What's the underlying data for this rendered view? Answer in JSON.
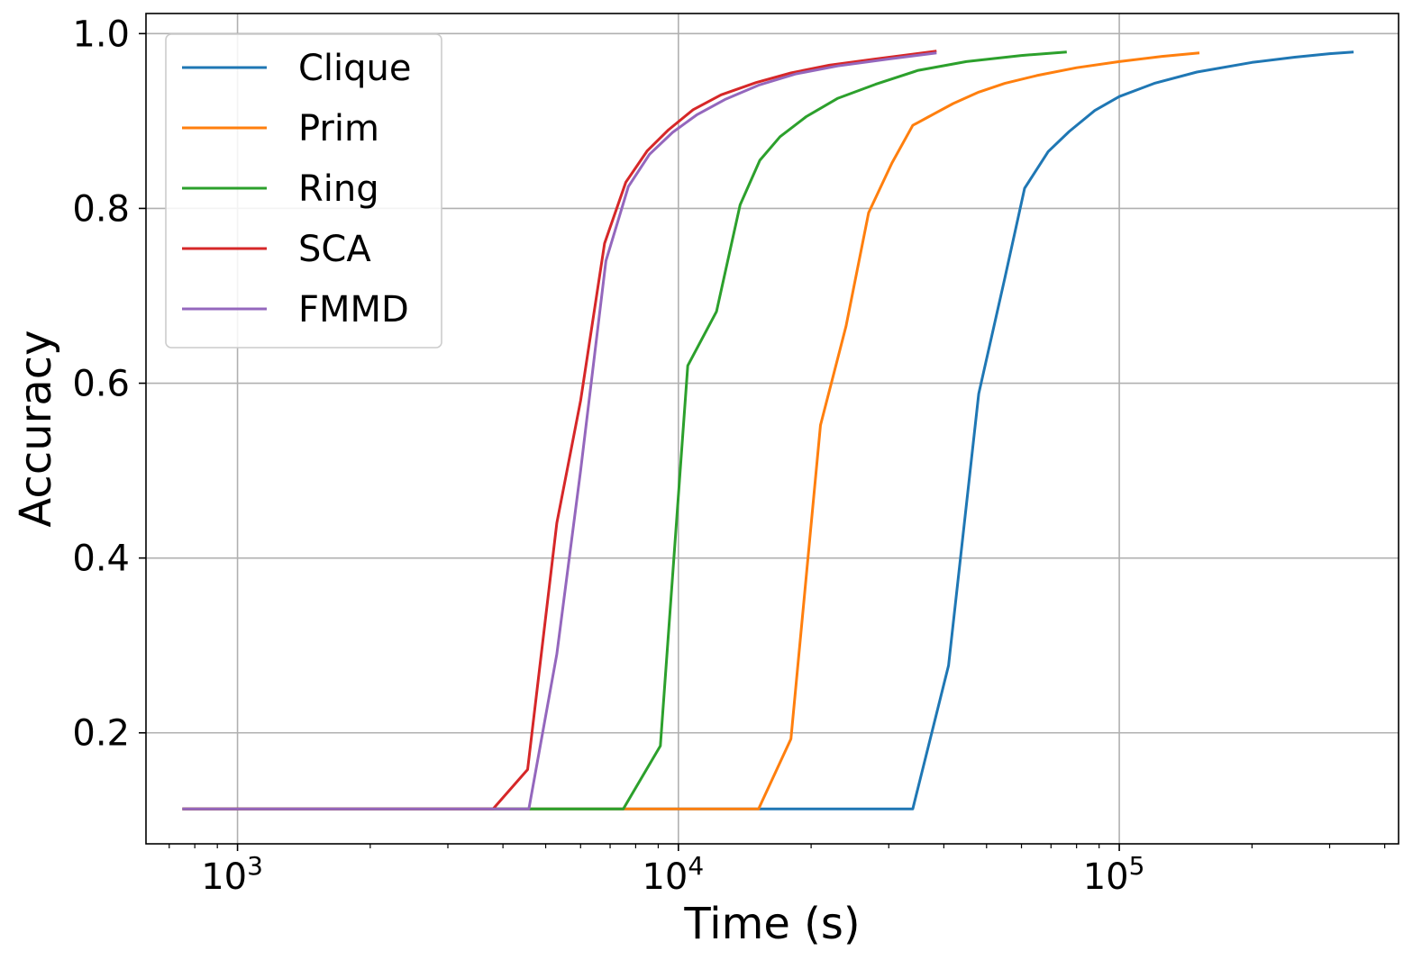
{
  "chart_data": {
    "type": "line",
    "xlabel": "Time (s)",
    "ylabel": "Accuracy",
    "xscale": "log",
    "xlim": [
      620,
      430000
    ],
    "ylim": [
      0.073,
      1.023
    ],
    "grid": true,
    "legend_position": "top-left",
    "x_ticks": [
      {
        "value": 1000,
        "base": "10",
        "exp": "3"
      },
      {
        "value": 10000,
        "base": "10",
        "exp": "4"
      },
      {
        "value": 100000,
        "base": "10",
        "exp": "5"
      }
    ],
    "y_ticks": [
      {
        "value": 0.2,
        "label": "0.2"
      },
      {
        "value": 0.4,
        "label": "0.4"
      },
      {
        "value": 0.6,
        "label": "0.6"
      },
      {
        "value": 0.8,
        "label": "0.8"
      },
      {
        "value": 1.0,
        "label": "1.0"
      }
    ],
    "series": [
      {
        "name": "Clique",
        "color": "#1f77b4",
        "x": [
          750,
          34000,
          41000,
          48000,
          55000,
          61000,
          69000,
          77000,
          88000,
          100000,
          120000,
          150000,
          200000,
          250000,
          300000,
          340000
        ],
        "y": [
          0.113,
          0.113,
          0.277,
          0.588,
          0.72,
          0.823,
          0.865,
          0.888,
          0.912,
          0.928,
          0.943,
          0.956,
          0.967,
          0.973,
          0.977,
          0.979
        ]
      },
      {
        "name": "Prim",
        "color": "#ff7f0e",
        "x": [
          750,
          15200,
          18000,
          21000,
          24000,
          27000,
          30500,
          34000,
          37000,
          42000,
          48000,
          55000,
          65000,
          80000,
          100000,
          125000,
          152000
        ],
        "y": [
          0.113,
          0.113,
          0.193,
          0.552,
          0.665,
          0.795,
          0.852,
          0.895,
          0.905,
          0.92,
          0.933,
          0.943,
          0.952,
          0.961,
          0.968,
          0.974,
          0.978
        ]
      },
      {
        "name": "Ring",
        "color": "#2ca02c",
        "x": [
          750,
          7500,
          9100,
          10500,
          12200,
          13800,
          15300,
          17000,
          19500,
          23000,
          28000,
          35000,
          45000,
          60000,
          76000
        ],
        "y": [
          0.113,
          0.113,
          0.185,
          0.62,
          0.682,
          0.804,
          0.855,
          0.882,
          0.905,
          0.926,
          0.942,
          0.958,
          0.968,
          0.975,
          0.979
        ]
      },
      {
        "name": "SCA",
        "color": "#d62728",
        "x": [
          750,
          3800,
          4550,
          5300,
          6000,
          6800,
          7600,
          8500,
          9500,
          10800,
          12500,
          15000,
          18000,
          22000,
          28000,
          38500
        ],
        "y": [
          0.113,
          0.113,
          0.158,
          0.44,
          0.58,
          0.76,
          0.83,
          0.866,
          0.89,
          0.913,
          0.93,
          0.944,
          0.955,
          0.964,
          0.971,
          0.98
        ]
      },
      {
        "name": "FMMD",
        "color": "#9467bd",
        "x": [
          750,
          4580,
          5300,
          6000,
          6850,
          7700,
          8600,
          9700,
          11000,
          12800,
          15200,
          18500,
          23000,
          30000,
          38500
        ],
        "y": [
          0.113,
          0.113,
          0.29,
          0.5,
          0.74,
          0.825,
          0.862,
          0.887,
          0.907,
          0.925,
          0.941,
          0.954,
          0.963,
          0.971,
          0.978
        ]
      }
    ]
  }
}
